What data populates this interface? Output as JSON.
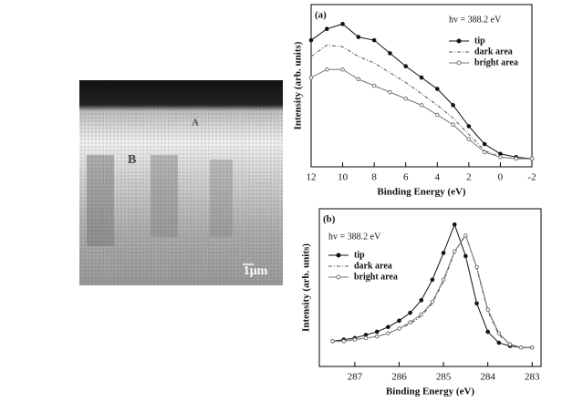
{
  "image": {
    "labels": [
      "A",
      "B"
    ],
    "scale_bar": "1μm"
  },
  "chart_data": [
    {
      "type": "line",
      "panel_label": "(a)",
      "annotation": "hv = 388.2 eV",
      "x_label": "Binding Energy (eV)",
      "y_label": "Intensity (arb. units)",
      "x": [
        12,
        11,
        10,
        9,
        8,
        7,
        6,
        5,
        4,
        3,
        2,
        1,
        0,
        -1,
        -2
      ],
      "xlim": [
        12,
        -2
      ],
      "xticks": [
        12,
        10,
        8,
        6,
        4,
        2,
        0,
        -2
      ],
      "ylim": [
        0,
        100
      ],
      "series": [
        {
          "name": "tip",
          "color": "#111111",
          "values": [
            78,
            85,
            88,
            80,
            78,
            70,
            62,
            55,
            48,
            38,
            25,
            14,
            8,
            6,
            5
          ]
        },
        {
          "name": "dark area",
          "color": "#555555",
          "values": [
            68,
            75,
            74,
            68,
            64,
            58,
            52,
            45,
            38,
            30,
            20,
            10,
            6,
            5,
            5
          ]
        },
        {
          "name": "bright area",
          "color": "#777777",
          "values": [
            55,
            60,
            60,
            54,
            50,
            46,
            42,
            38,
            32,
            26,
            17,
            9,
            6,
            5,
            5
          ]
        }
      ]
    },
    {
      "type": "line",
      "panel_label": "(b)",
      "annotation": "hv = 388.2 eV",
      "x_label": "Binding Energy (eV)",
      "y_label": "Intensity (arb. units)",
      "x": [
        287.5,
        287.25,
        287,
        286.75,
        286.5,
        286.25,
        286,
        285.75,
        285.5,
        285.25,
        285,
        284.75,
        284.5,
        284.25,
        284,
        283.75,
        283.5,
        283.25,
        283
      ],
      "xlim": [
        287.8,
        282.8
      ],
      "xticks": [
        287,
        286,
        285,
        284,
        283
      ],
      "ylim": [
        0,
        100
      ],
      "series": [
        {
          "name": "tip",
          "color": "#111111",
          "values": [
            16,
            17,
            18,
            20,
            22,
            25,
            29,
            34,
            42,
            55,
            72,
            90,
            70,
            40,
            22,
            15,
            13,
            12,
            12
          ]
        },
        {
          "name": "dark area",
          "color": "#555555",
          "values": [
            16,
            16,
            17,
            18,
            19,
            21,
            24,
            27,
            32,
            40,
            54,
            72,
            84,
            62,
            35,
            20,
            14,
            12,
            12
          ]
        },
        {
          "name": "bright area",
          "color": "#777777",
          "values": [
            16,
            16,
            17,
            18,
            19,
            21,
            24,
            28,
            33,
            41,
            55,
            73,
            83,
            63,
            36,
            21,
            14,
            12,
            12
          ]
        }
      ]
    }
  ]
}
